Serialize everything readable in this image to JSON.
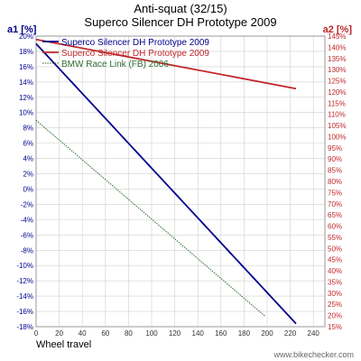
{
  "chart_data": {
    "type": "line",
    "title": "Anti-squat (32/15)",
    "subtitle": "Superco Silencer DH Prototype 2009",
    "xlabel": "Wheel travel",
    "y1label": "a1 [%]",
    "y2label": "a2 [%]",
    "xlim": [
      0,
      250
    ],
    "y1lim": [
      -18,
      20
    ],
    "y2lim": [
      15,
      145
    ],
    "xticks": [
      "0",
      "20",
      "40",
      "60",
      "80",
      "100",
      "120",
      "140",
      "160",
      "180",
      "200",
      "220",
      "240"
    ],
    "y1ticks": [
      "20%",
      "18%",
      "16%",
      "14%",
      "12%",
      "10%",
      "8%",
      "6%",
      "4%",
      "2%",
      "0%",
      "-2%",
      "-4%",
      "-6%",
      "-8%",
      "-10%",
      "-12%",
      "-14%",
      "-16%",
      "-18%"
    ],
    "y2ticks": [
      "145%",
      "140%",
      "135%",
      "130%",
      "125%",
      "120%",
      "115%",
      "110%",
      "105%",
      "100%",
      "95%",
      "90%",
      "85%",
      "80%",
      "75%",
      "70%",
      "65%",
      "60%",
      "55%",
      "50%",
      "45%",
      "40%",
      "35%",
      "30%",
      "25%",
      "20%",
      "15%"
    ],
    "grid": true,
    "legend_position": "top-left",
    "series": [
      {
        "name": "Superco Silencer DH Prototype 2009",
        "axis": "a1",
        "color": "#00008b",
        "style": "solid",
        "x": [
          0,
          225
        ],
        "y": [
          19,
          -17.6
        ]
      },
      {
        "name": "Superco Silencer DH Prototype 2009",
        "axis": "a2",
        "color": "#c0282a",
        "style": "solid",
        "x": [
          0,
          225
        ],
        "y": [
          143.5,
          121.5
        ]
      },
      {
        "name": "BMW Race Link (FB) 2006",
        "axis": "a1",
        "color": "#2e6b2e",
        "style": "dotted",
        "x": [
          0,
          198
        ],
        "y": [
          9,
          -16.6
        ]
      }
    ]
  },
  "footer": "www.bikechecker.com",
  "colors": {
    "a1": "#00008b",
    "a2": "#c0282a",
    "grid": "#d0d0d0",
    "frame": "#999999"
  }
}
